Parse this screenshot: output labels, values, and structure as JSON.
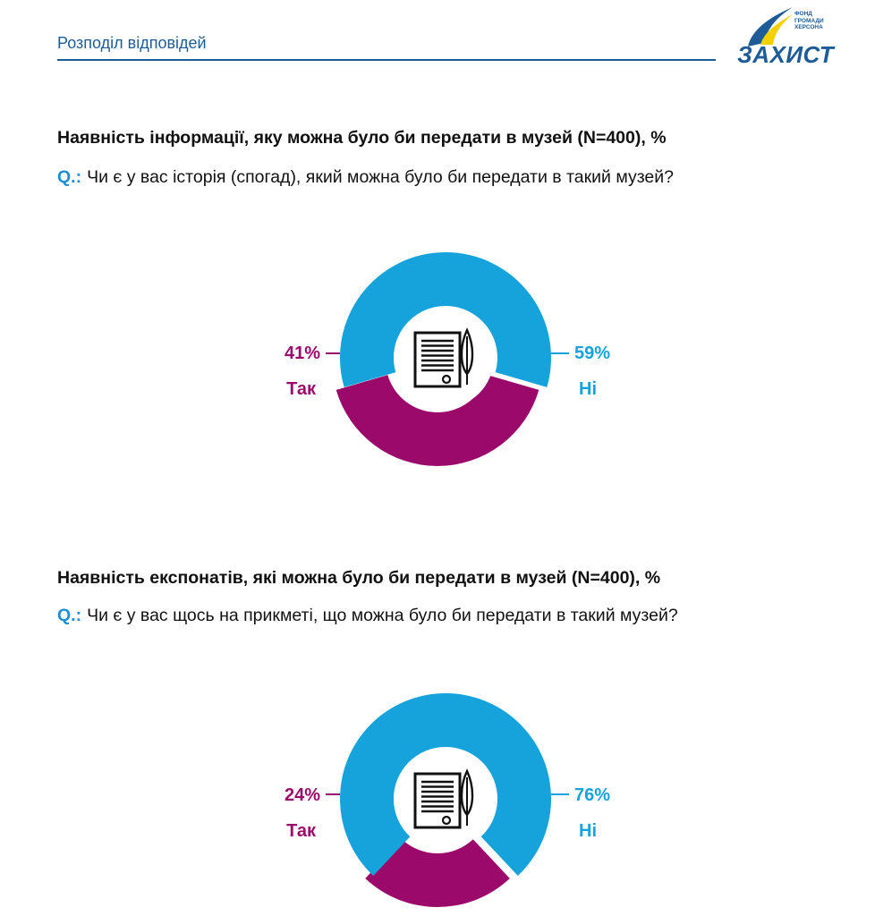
{
  "header": {
    "title": "Розподіл відповідей",
    "logo": {
      "word": "ЗАХИСТ",
      "small_lines": [
        "ФОНД",
        "ГРОМАДИ",
        "ХЕРСОНА"
      ]
    }
  },
  "colors": {
    "yes": "#9b0a6b",
    "no": "#16a3dc",
    "accent": "#1d5c96"
  },
  "charts": [
    {
      "title": "Наявність інформації, яку можна було би передати в музей (N=400), %",
      "q_prefix": "Q.:",
      "question": "Чи є у вас історія (спогад), який можна було би передати в такий музей?",
      "yes_pct": "41%",
      "yes_label": "Так",
      "no_pct": "59%",
      "no_label": "Ні",
      "icon": "document-quill-icon"
    },
    {
      "title": "Наявність експонатів, які можна було би передати в музей (N=400), %",
      "q_prefix": "Q.:",
      "question": "Чи є у вас щось на прикметі, що можна було би передати в такий музей?",
      "yes_pct": "24%",
      "yes_label": "Так",
      "no_pct": "76%",
      "no_label": "Ні",
      "icon": "document-quill-icon"
    }
  ],
  "chart_data": [
    {
      "type": "pie",
      "title": "Наявність інформації, яку можна було би передати в музей (N=400), %",
      "categories": [
        "Так",
        "Ні"
      ],
      "values": [
        41,
        59
      ]
    },
    {
      "type": "pie",
      "title": "Наявність експонатів, які можна було би передати в музей (N=400), %",
      "categories": [
        "Так",
        "Ні"
      ],
      "values": [
        24,
        76
      ]
    }
  ]
}
